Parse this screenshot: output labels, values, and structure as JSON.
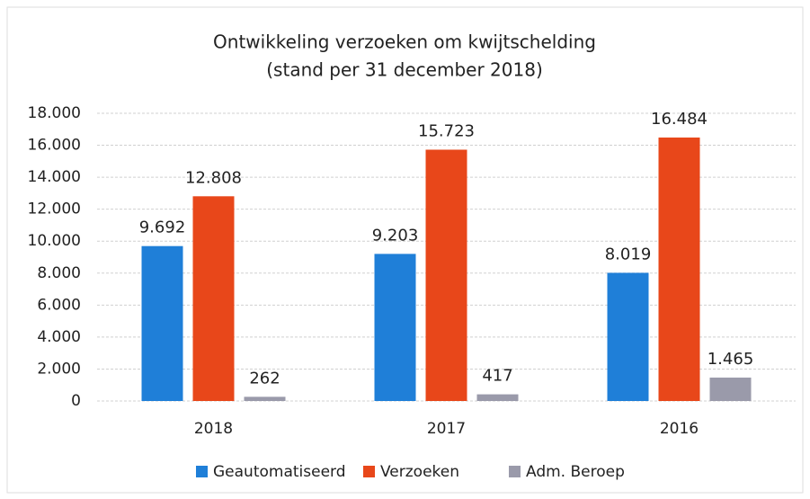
{
  "chart_data": {
    "type": "bar",
    "title": "Ontwikkeling verzoeken om kwijtschelding",
    "subtitle": "(stand per 31 december 2018)",
    "categories": [
      "2018",
      "2017",
      "2016"
    ],
    "series": [
      {
        "name": "Geautomatiseerd",
        "color": "#1f7fd8",
        "values": [
          9692,
          9203,
          8019
        ],
        "value_labels": [
          "9.692",
          "9.203",
          "8.019"
        ]
      },
      {
        "name": "Verzoeken",
        "color": "#e8471a",
        "values": [
          12808,
          15723,
          16484
        ],
        "value_labels": [
          "12.808",
          "15.723",
          "16.484"
        ]
      },
      {
        "name": "Adm. Beroep",
        "color": "#9a9aaa",
        "values": [
          262,
          417,
          1465
        ],
        "value_labels": [
          "262",
          "417",
          "1.465"
        ]
      }
    ],
    "ylim": [
      0,
      18000
    ],
    "yticks": [
      0,
      {
        "value": 2000,
        "label": "2.000"
      },
      {
        "value": 4000,
        "label": "4.000"
      },
      {
        "value": 6000,
        "label": "6.000"
      },
      {
        "value": 8000,
        "label": "8.000"
      },
      {
        "value": 10000,
        "label": "10.000"
      },
      {
        "value": 12000,
        "label": "12.000"
      },
      {
        "value": 14000,
        "label": "14.000"
      },
      {
        "value": 16000,
        "label": "16.000"
      },
      {
        "value": 18000,
        "label": "18.000"
      }
    ],
    "grid": true,
    "legend": "bottom"
  }
}
